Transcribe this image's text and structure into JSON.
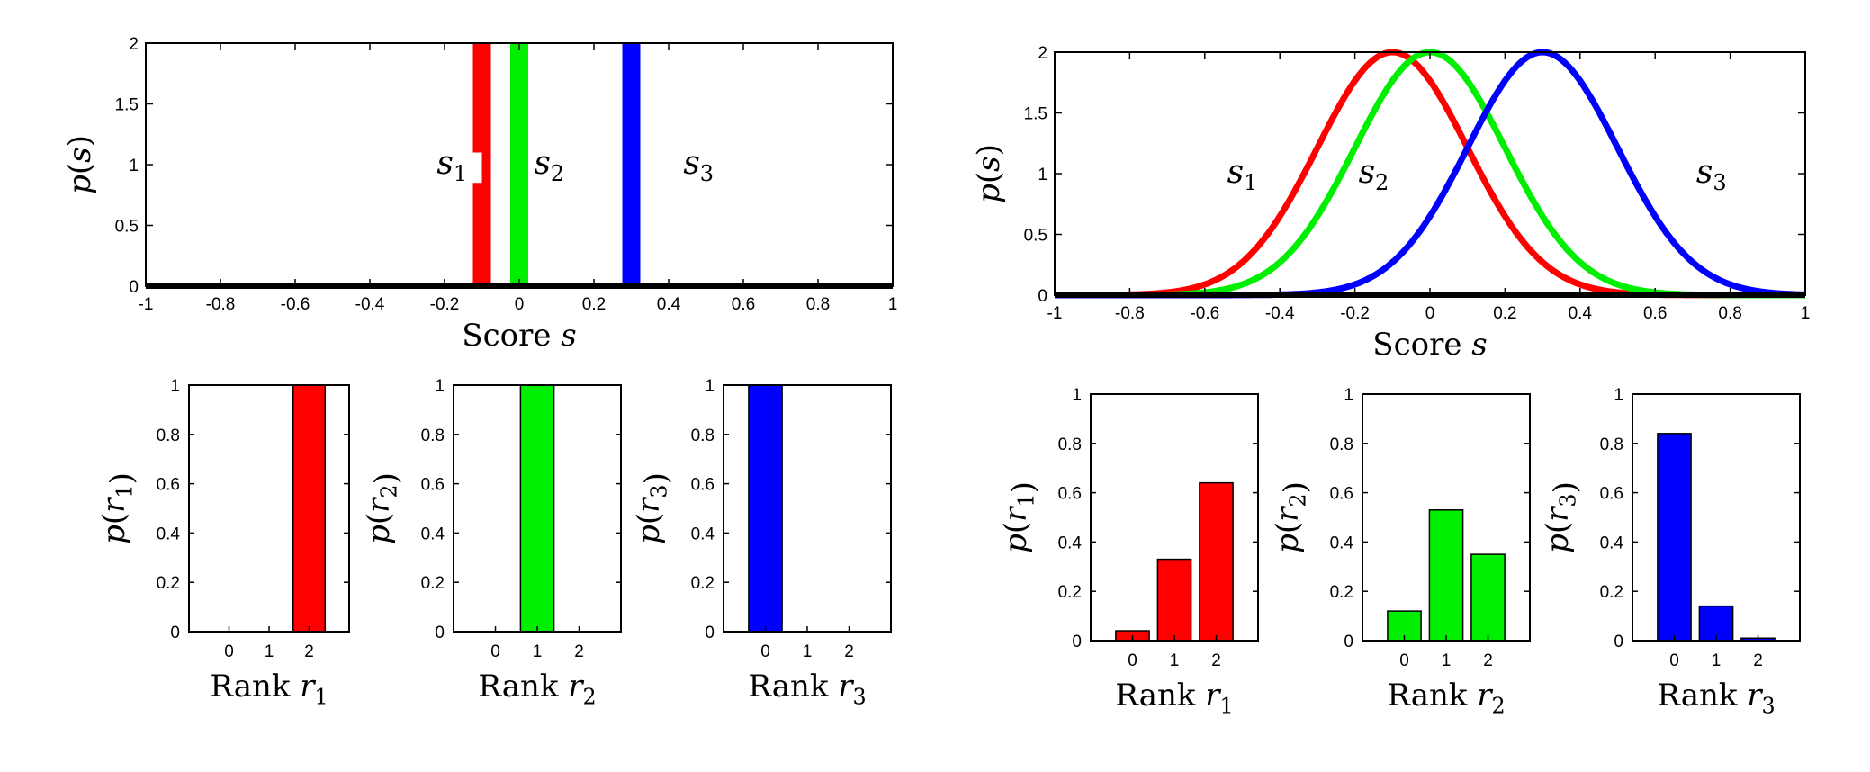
{
  "colors": {
    "s1": "#ff0000",
    "s2": "#00ee00",
    "s3": "#0000ff",
    "axis": "#000000"
  },
  "chart_data": [
    {
      "type": "bar",
      "ylabel": "p(s)",
      "xlabel": "Score s",
      "xlim": [
        -1,
        1
      ],
      "ylim": [
        0,
        2
      ],
      "xticks": [
        "-1",
        "-0.8",
        "-0.6",
        "-0.4",
        "-0.2",
        "0",
        "0.2",
        "0.4",
        "0.6",
        "0.8",
        "1"
      ],
      "yticks": [
        "0",
        "0.5",
        "1",
        "1.5",
        "2"
      ],
      "series": [
        {
          "name": "s1",
          "color": "#ff0000",
          "x": -0.1,
          "y": 2
        },
        {
          "name": "s2",
          "color": "#00ee00",
          "x": 0.0,
          "y": 2
        },
        {
          "name": "s3",
          "color": "#0000ff",
          "x": 0.3,
          "y": 2
        }
      ],
      "annotations": [
        "s1",
        "s2",
        "s3"
      ]
    },
    {
      "type": "bar",
      "categories": [
        "0",
        "1",
        "2"
      ],
      "values": [
        0,
        0,
        1
      ],
      "color": "#ff0000",
      "ylabel": "p(r1)",
      "xlabel": "Rank r1",
      "ylim": [
        0,
        1
      ],
      "yticks": [
        "0",
        "0.2",
        "0.4",
        "0.6",
        "0.8",
        "1"
      ]
    },
    {
      "type": "bar",
      "categories": [
        "0",
        "1",
        "2"
      ],
      "values": [
        0,
        1,
        0
      ],
      "color": "#00ee00",
      "ylabel": "p(r2)",
      "xlabel": "Rank r2",
      "ylim": [
        0,
        1
      ],
      "yticks": [
        "0",
        "0.2",
        "0.4",
        "0.6",
        "0.8",
        "1"
      ]
    },
    {
      "type": "bar",
      "categories": [
        "0",
        "1",
        "2"
      ],
      "values": [
        1,
        0,
        0
      ],
      "color": "#0000ff",
      "ylabel": "p(r3)",
      "xlabel": "Rank r3",
      "ylim": [
        0,
        1
      ],
      "yticks": [
        "0",
        "0.2",
        "0.4",
        "0.6",
        "0.8",
        "1"
      ]
    },
    {
      "type": "line",
      "ylabel": "p(s)",
      "xlabel": "Score s",
      "xlim": [
        -1,
        1
      ],
      "ylim": [
        0,
        2
      ],
      "xticks": [
        "-1",
        "-0.8",
        "-0.6",
        "-0.4",
        "-0.2",
        "0",
        "0.2",
        "0.4",
        "0.6",
        "0.8",
        "1"
      ],
      "yticks": [
        "0",
        "0.5",
        "1",
        "1.5",
        "2"
      ],
      "series": [
        {
          "name": "s1",
          "color": "#ff0000",
          "mean": -0.1,
          "sd": 0.2,
          "peak": 2
        },
        {
          "name": "s2",
          "color": "#00ee00",
          "mean": 0.0,
          "sd": 0.2,
          "peak": 2
        },
        {
          "name": "s3",
          "color": "#0000ff",
          "mean": 0.3,
          "sd": 0.2,
          "peak": 2
        }
      ],
      "annotations": [
        "s1",
        "s2",
        "s3"
      ]
    },
    {
      "type": "bar",
      "categories": [
        "0",
        "1",
        "2"
      ],
      "values": [
        0.04,
        0.33,
        0.64
      ],
      "color": "#ff0000",
      "ylabel": "p(r1)",
      "xlabel": "Rank r1",
      "ylim": [
        0,
        1
      ],
      "yticks": [
        "0",
        "0.2",
        "0.4",
        "0.6",
        "0.8",
        "1"
      ]
    },
    {
      "type": "bar",
      "categories": [
        "0",
        "1",
        "2"
      ],
      "values": [
        0.12,
        0.53,
        0.35
      ],
      "color": "#00ee00",
      "ylabel": "p(r2)",
      "xlabel": "Rank r2",
      "ylim": [
        0,
        1
      ],
      "yticks": [
        "0",
        "0.2",
        "0.4",
        "0.6",
        "0.8",
        "1"
      ]
    },
    {
      "type": "bar",
      "categories": [
        "0",
        "1",
        "2"
      ],
      "values": [
        0.84,
        0.14,
        0.01
      ],
      "color": "#0000ff",
      "ylabel": "p(r3)",
      "xlabel": "Rank r3",
      "ylim": [
        0,
        1
      ],
      "yticks": [
        "0",
        "0.2",
        "0.4",
        "0.6",
        "0.8",
        "1"
      ]
    }
  ]
}
